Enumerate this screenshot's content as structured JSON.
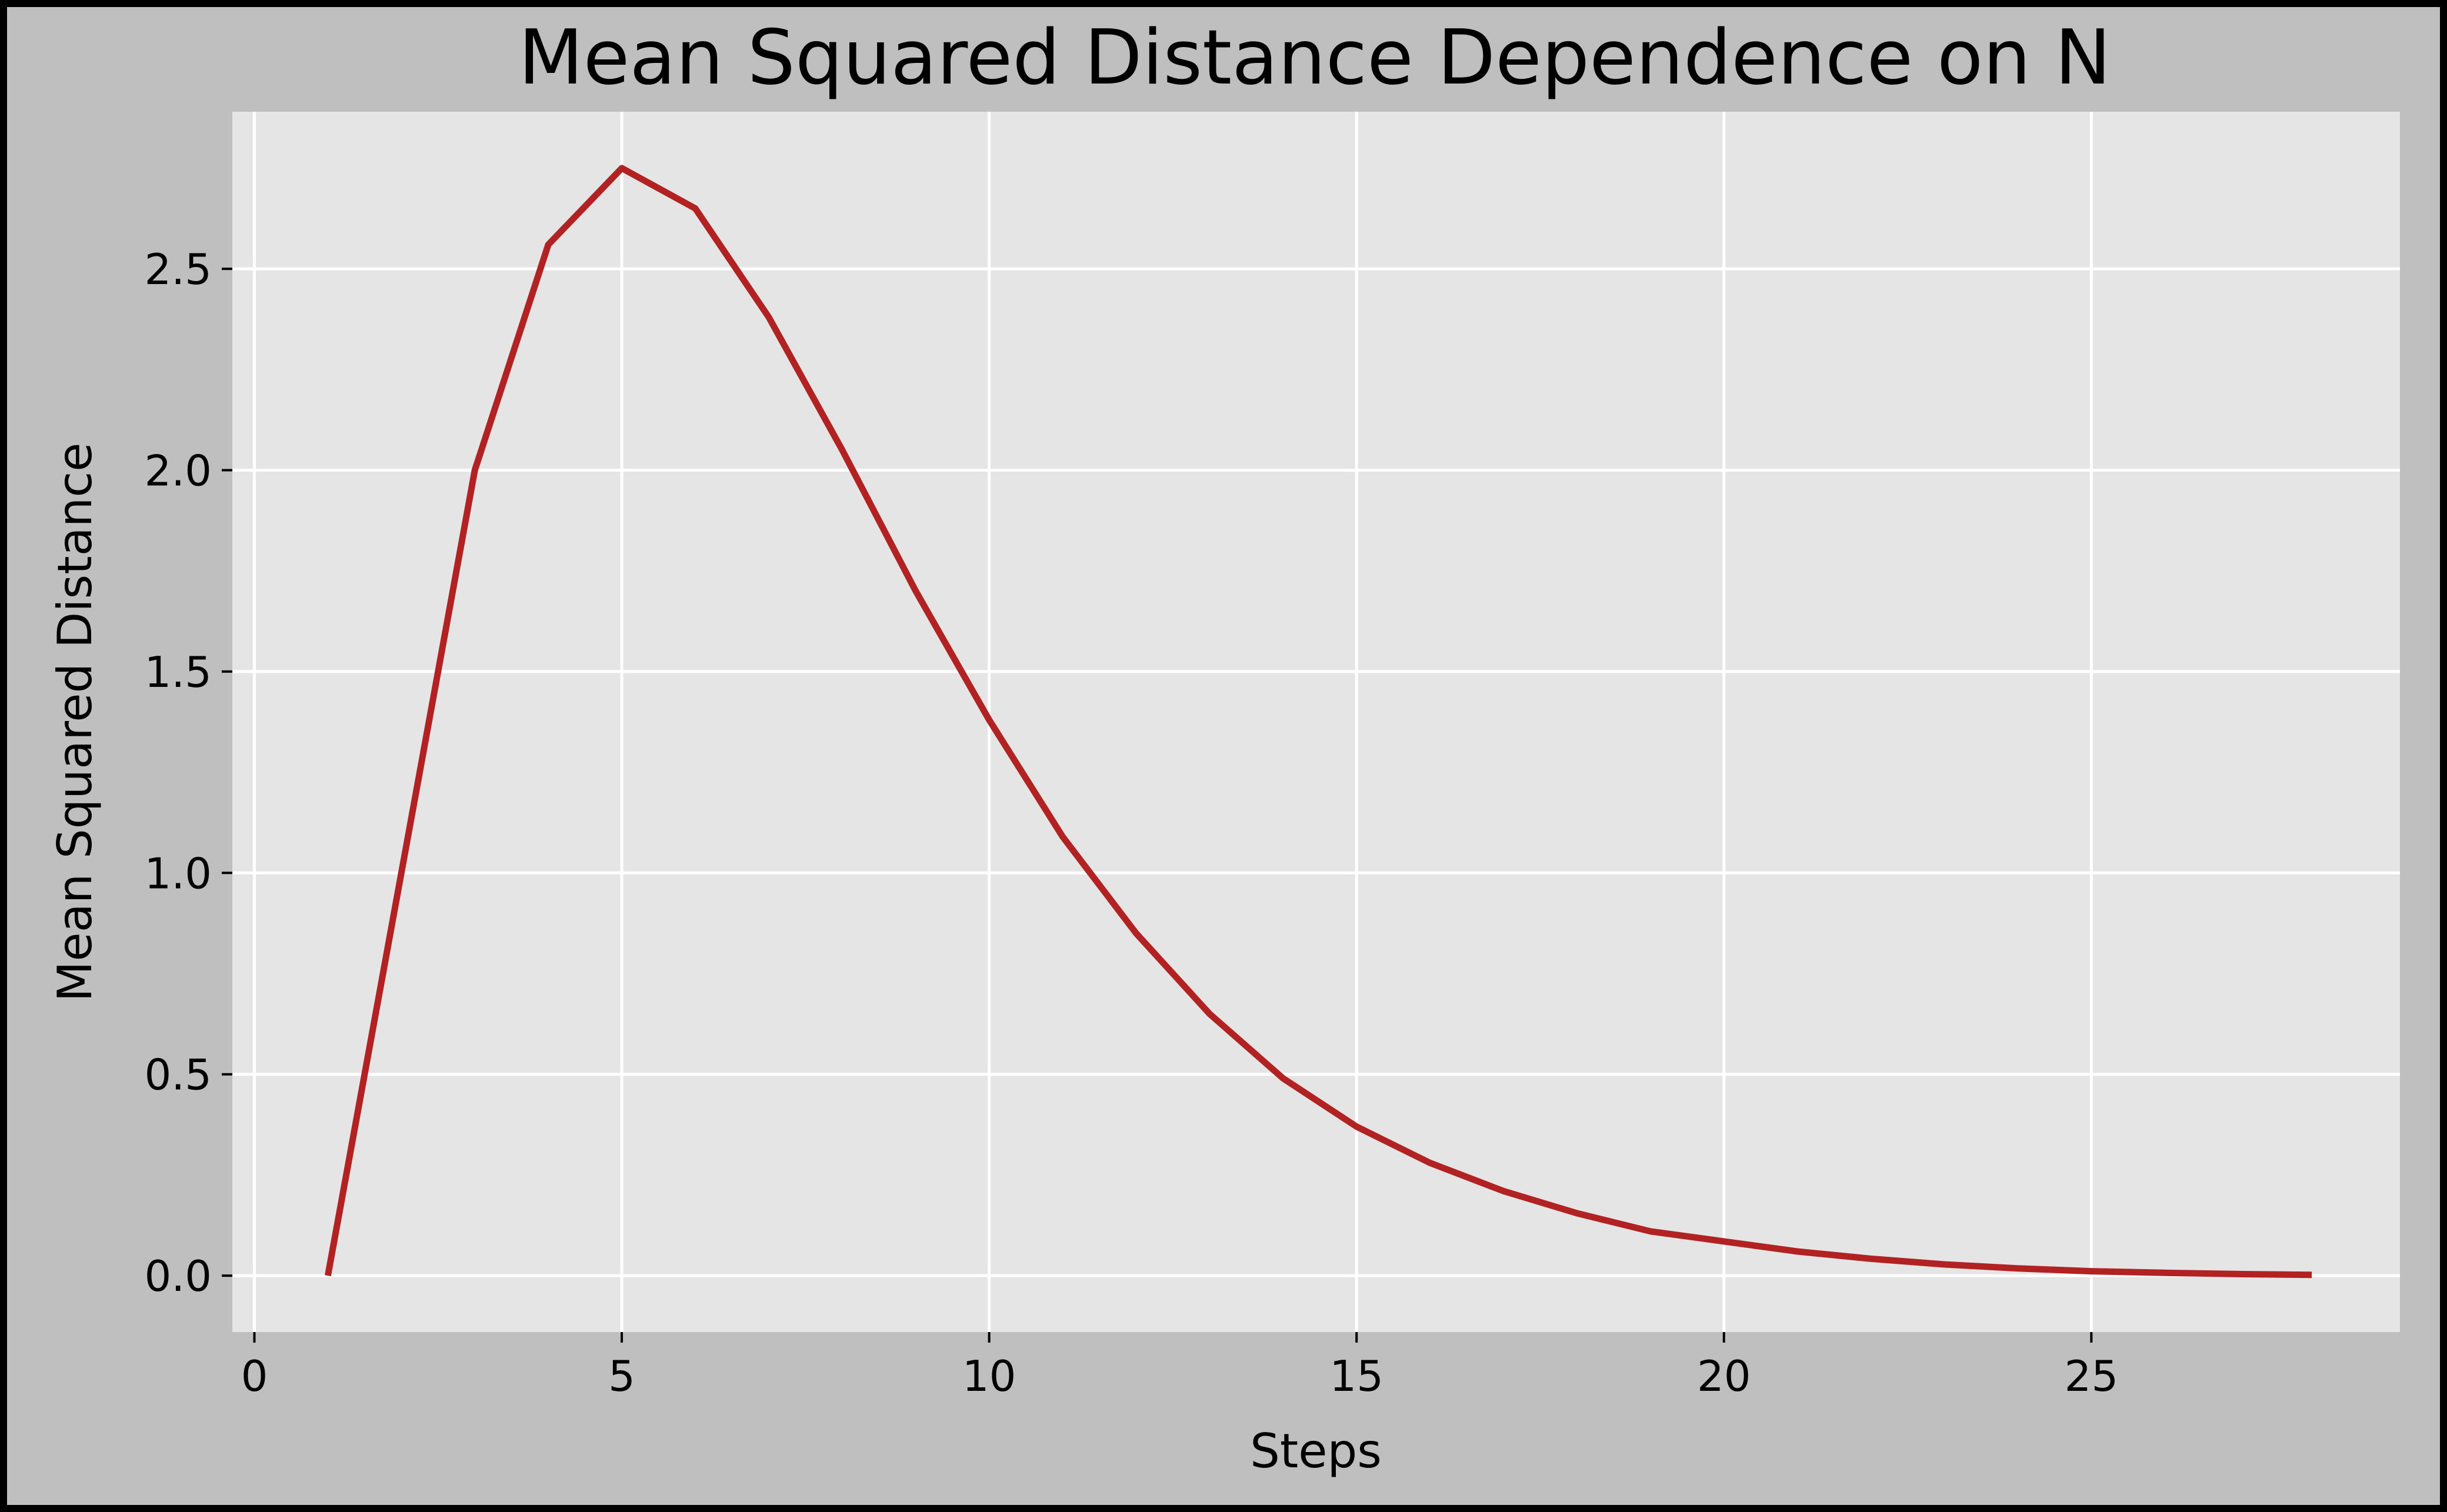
{
  "chart_data": {
    "type": "line",
    "title": "Mean Squared Distance Dependence on N",
    "xlabel": "Steps",
    "ylabel": "Mean Squared Distance",
    "xlim": [
      -0.3,
      29.2
    ],
    "ylim": [
      -0.14,
      2.89
    ],
    "xticks": [
      0,
      5,
      10,
      15,
      20,
      25
    ],
    "xtick_labels": [
      "0",
      "5",
      "10",
      "15",
      "20",
      "25"
    ],
    "yticks": [
      0.0,
      0.5,
      1.0,
      1.5,
      2.0,
      2.5
    ],
    "ytick_labels": [
      "0.0",
      "0.5",
      "1.0",
      "1.5",
      "2.0",
      "2.5"
    ],
    "grid": true,
    "legend": "none",
    "series": [
      {
        "color": "#b22222",
        "x": [
          1,
          2,
          3,
          4,
          5,
          6,
          7,
          8,
          9,
          10,
          11,
          12,
          13,
          14,
          15,
          16,
          17,
          18,
          19,
          20,
          21,
          22,
          23,
          24,
          25,
          26,
          27,
          28
        ],
        "y": [
          0.0,
          1.0,
          2.0,
          2.56,
          2.75,
          2.65,
          2.38,
          2.05,
          1.7,
          1.38,
          1.09,
          0.85,
          0.65,
          0.49,
          0.37,
          0.28,
          0.21,
          0.155,
          0.11,
          0.085,
          0.06,
          0.042,
          0.028,
          0.018,
          0.011,
          0.007,
          0.004,
          0.002
        ]
      }
    ]
  },
  "colors": {
    "frame": "#000000",
    "figure_background": "#bfbfbf",
    "plot_background": "#e5e5e5",
    "grid": "#ffffff",
    "line": "#b22222"
  }
}
